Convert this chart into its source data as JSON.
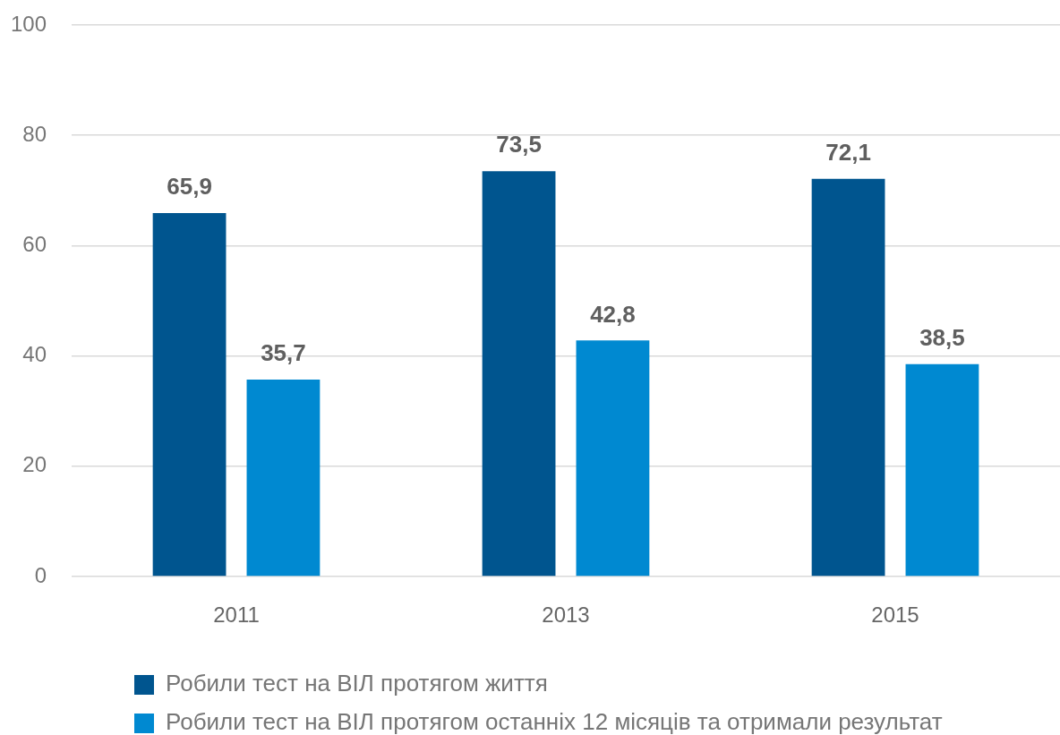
{
  "chart_data": {
    "type": "bar",
    "categories": [
      "2011",
      "2013",
      "2015"
    ],
    "series": [
      {
        "name": "Робили тест на ВІЛ протягом життя",
        "color": "#00558f",
        "values": [
          65.9,
          73.5,
          72.1
        ],
        "value_labels": [
          "65,9",
          "73,5",
          "72,1"
        ]
      },
      {
        "name": "Робили тест на ВІЛ протягом останніх 12 місяців та отримали результат",
        "color": "#0089d1",
        "values": [
          35.7,
          42.8,
          38.5
        ],
        "value_labels": [
          "35,7",
          "42,8",
          "38,5"
        ]
      }
    ],
    "ylim": [
      0,
      100
    ],
    "yticks": [
      0,
      20,
      40,
      60,
      80,
      100
    ],
    "grid": "y",
    "legend": "bottom left"
  }
}
